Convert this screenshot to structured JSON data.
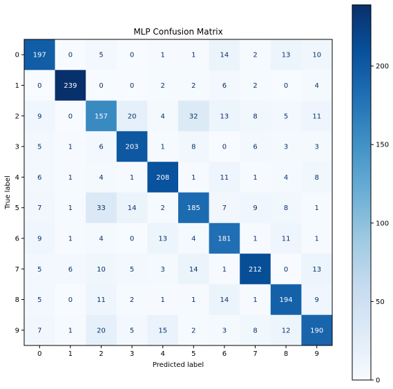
{
  "chart_data": {
    "type": "heatmap",
    "title": "MLP Confusion Matrix",
    "xlabel": "Predicted label",
    "ylabel": "True label",
    "x_categories": [
      "0",
      "1",
      "2",
      "3",
      "4",
      "5",
      "6",
      "7",
      "8",
      "9"
    ],
    "y_categories": [
      "0",
      "1",
      "2",
      "3",
      "4",
      "5",
      "6",
      "7",
      "8",
      "9"
    ],
    "matrix": [
      [
        197,
        0,
        5,
        0,
        1,
        1,
        14,
        2,
        13,
        10
      ],
      [
        0,
        239,
        0,
        0,
        2,
        2,
        6,
        2,
        0,
        4
      ],
      [
        9,
        0,
        157,
        20,
        4,
        32,
        13,
        8,
        5,
        11
      ],
      [
        5,
        1,
        6,
        203,
        1,
        8,
        0,
        6,
        3,
        3
      ],
      [
        6,
        1,
        4,
        1,
        208,
        1,
        11,
        1,
        4,
        8
      ],
      [
        7,
        1,
        33,
        14,
        2,
        185,
        7,
        9,
        8,
        1
      ],
      [
        9,
        1,
        4,
        0,
        13,
        4,
        181,
        1,
        11,
        1
      ],
      [
        5,
        6,
        10,
        5,
        3,
        14,
        1,
        212,
        0,
        13
      ],
      [
        5,
        0,
        11,
        2,
        1,
        1,
        14,
        1,
        194,
        9
      ],
      [
        7,
        1,
        20,
        5,
        15,
        2,
        3,
        8,
        12,
        190
      ]
    ],
    "colormap": "Blues",
    "vmin": 0,
    "vmax": 239,
    "colorbar_ticks": [
      0,
      50,
      100,
      150,
      200
    ],
    "grid": false
  }
}
